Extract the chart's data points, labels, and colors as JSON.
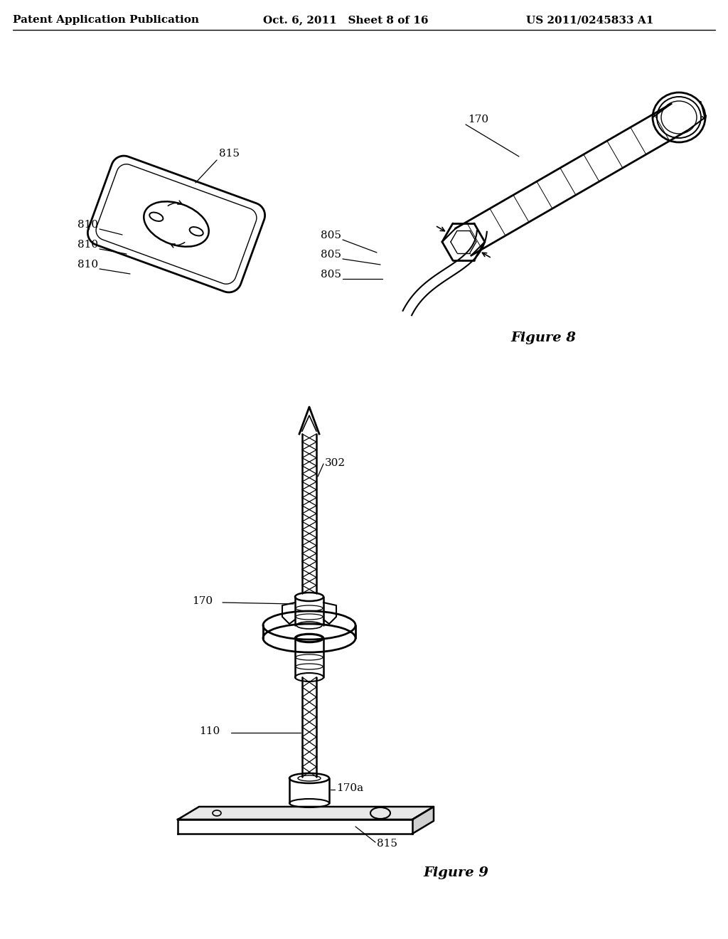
{
  "background_color": "#ffffff",
  "header_left": "Patent Application Publication",
  "header_center": "Oct. 6, 2011   Sheet 8 of 16",
  "header_right": "US 2011/0245833 A1",
  "fig8_caption": "Figure 8",
  "fig9_caption": "Figure 9",
  "label_fontsize": 11
}
